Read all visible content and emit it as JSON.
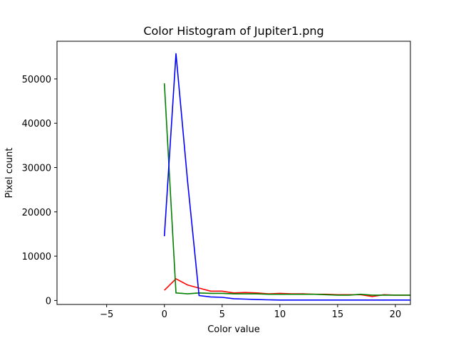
{
  "chart_data": {
    "type": "line",
    "title": "Color Histogram of Jupiter1.png",
    "xlabel": "Color value",
    "ylabel": "Pixel count",
    "xlim": [
      -9.3,
      21.3
    ],
    "ylim": [
      -900,
      58500
    ],
    "xticks": [
      -5,
      0,
      5,
      10,
      15,
      20
    ],
    "yticks": [
      0,
      10000,
      20000,
      30000,
      40000,
      50000
    ],
    "grid": false,
    "legend": "none",
    "series": [
      {
        "color": "#ff0000",
        "x": [
          0,
          1,
          2,
          3,
          4,
          5,
          6,
          7,
          8,
          9,
          10,
          11,
          12,
          13,
          14,
          15,
          16,
          17,
          18,
          19,
          20,
          21,
          22
        ],
        "values": [
          2300,
          4900,
          3500,
          2800,
          2100,
          2100,
          1700,
          1800,
          1700,
          1500,
          1600,
          1500,
          1500,
          1400,
          1400,
          1300,
          1300,
          1300,
          900,
          1300,
          1200,
          1200,
          1200
        ]
      },
      {
        "color": "#008000",
        "x": [
          0,
          1,
          2,
          3,
          4,
          5,
          6,
          7,
          8,
          9,
          10,
          11,
          12,
          13,
          14,
          15,
          16,
          17,
          18,
          19,
          20,
          21,
          22
        ],
        "values": [
          49000,
          1700,
          1500,
          1700,
          1600,
          1600,
          1500,
          1500,
          1500,
          1400,
          1400,
          1400,
          1400,
          1400,
          1300,
          1200,
          1200,
          1400,
          1200,
          1200,
          1200,
          1200,
          1200
        ]
      },
      {
        "color": "#0000ff",
        "x": [
          0,
          1,
          2,
          3,
          4,
          5,
          6,
          7,
          8,
          9,
          10,
          11,
          12,
          13,
          14,
          15,
          16,
          17,
          18,
          19,
          20,
          21,
          22
        ],
        "values": [
          14500,
          55700,
          27000,
          1100,
          800,
          700,
          400,
          300,
          200,
          150,
          100,
          100,
          100,
          100,
          100,
          100,
          100,
          100,
          100,
          100,
          100,
          100,
          100
        ]
      }
    ]
  }
}
